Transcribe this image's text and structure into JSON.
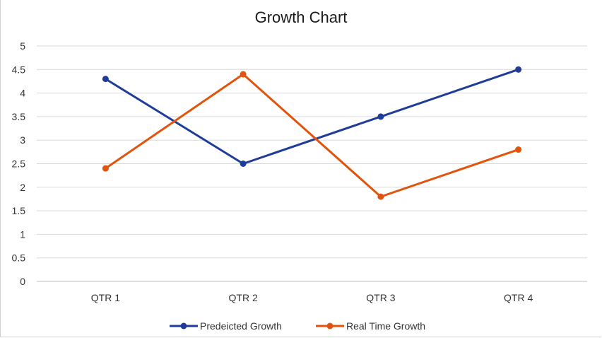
{
  "chart_data": {
    "type": "line",
    "title": "Growth Chart",
    "xlabel": "",
    "ylabel": "",
    "categories": [
      "QTR 1",
      "QTR 2",
      "QTR 3",
      "QTR 4"
    ],
    "ylim": [
      0,
      5
    ],
    "yticks": [
      "0",
      "0.5",
      "1",
      "1.5",
      "2",
      "2.5",
      "3",
      "3.5",
      "4",
      "4.5",
      "5"
    ],
    "grid": true,
    "legend_position": "bottom",
    "series": [
      {
        "name": "Predeicted Growth",
        "values": [
          4.3,
          2.5,
          3.5,
          4.5
        ],
        "color": "#1f3c99"
      },
      {
        "name": "Real Time Growth",
        "values": [
          2.4,
          4.4,
          1.8,
          2.8
        ],
        "color": "#e2530d"
      }
    ]
  }
}
